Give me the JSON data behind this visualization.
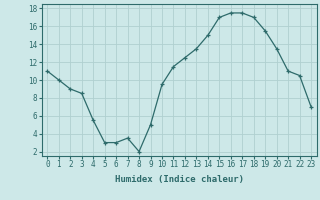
{
  "x": [
    0,
    1,
    2,
    3,
    4,
    5,
    6,
    7,
    8,
    9,
    10,
    11,
    12,
    13,
    14,
    15,
    16,
    17,
    18,
    19,
    20,
    21,
    22,
    23
  ],
  "y": [
    11,
    10,
    9,
    8.5,
    5.5,
    3,
    3,
    3.5,
    2,
    5,
    9.5,
    11.5,
    12.5,
    13.5,
    15,
    17,
    17.5,
    17.5,
    17,
    15.5,
    13.5,
    11,
    10.5,
    7
  ],
  "line_color": "#2e6b6b",
  "marker": "+",
  "bg_color": "#cde8e8",
  "grid_color": "#b0d0d0",
  "xlabel": "Humidex (Indice chaleur)",
  "ylim_min": 1.5,
  "ylim_max": 18.5,
  "xlim_min": -0.5,
  "xlim_max": 23.5,
  "yticks": [
    2,
    4,
    6,
    8,
    10,
    12,
    14,
    16,
    18
  ],
  "xticks": [
    0,
    1,
    2,
    3,
    4,
    5,
    6,
    7,
    8,
    9,
    10,
    11,
    12,
    13,
    14,
    15,
    16,
    17,
    18,
    19,
    20,
    21,
    22,
    23
  ],
  "tick_color": "#2e6b6b",
  "label_fontsize": 5.5,
  "axis_fontsize": 6.5
}
